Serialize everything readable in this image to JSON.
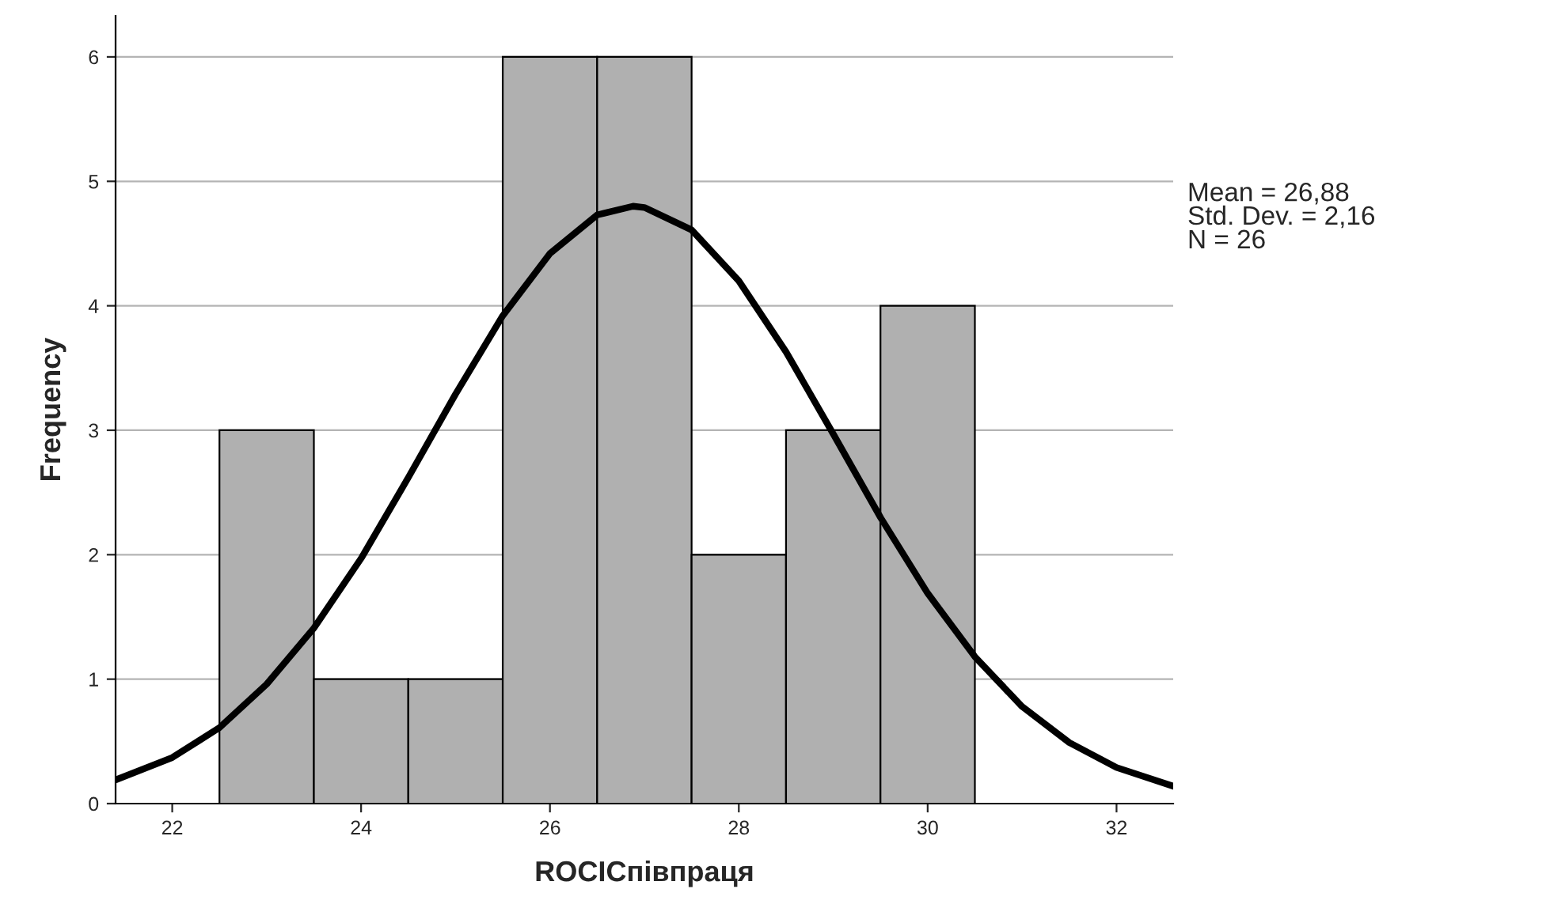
{
  "chart_data": {
    "type": "histogram",
    "xlabel": "ROCIСпівпраця",
    "ylabel": "Frequency",
    "bins": [
      22.5,
      23.5,
      24.5,
      25.5,
      26.5,
      27.5,
      28.5,
      29.5,
      30.5
    ],
    "values": [
      3,
      1,
      1,
      6,
      6,
      2,
      3,
      4
    ],
    "color": "#b0b0b0",
    "series": [
      {
        "type": "line",
        "color": "#000000",
        "x": [
          21.4,
          22,
          22.5,
          23,
          23.5,
          24,
          24.5,
          25,
          25.5,
          26,
          26.5,
          26.88,
          27,
          27.5,
          28,
          28.5,
          29,
          29.5,
          30,
          30.5,
          31,
          31.5,
          32,
          32.6
        ],
        "values": [
          0.19,
          0.37,
          0.61,
          0.96,
          1.41,
          1.97,
          2.62,
          3.29,
          3.92,
          4.42,
          4.73,
          4.8,
          4.79,
          4.61,
          4.2,
          3.63,
          2.97,
          2.3,
          1.69,
          1.18,
          0.78,
          0.49,
          0.29,
          0.14
        ]
      }
    ],
    "xlim": [
      21.4,
      32.6
    ],
    "xticks": [
      22,
      24,
      26,
      28,
      30,
      32
    ],
    "ylim": [
      0,
      6.33
    ],
    "yticks": [
      0,
      1,
      2,
      3,
      4,
      5,
      6
    ],
    "grid": "y",
    "line_style": "solid",
    "marker": "none",
    "annotations": [
      "Mean = 26,88\nStd. Dev. = 2,16\nN = 26"
    ]
  }
}
